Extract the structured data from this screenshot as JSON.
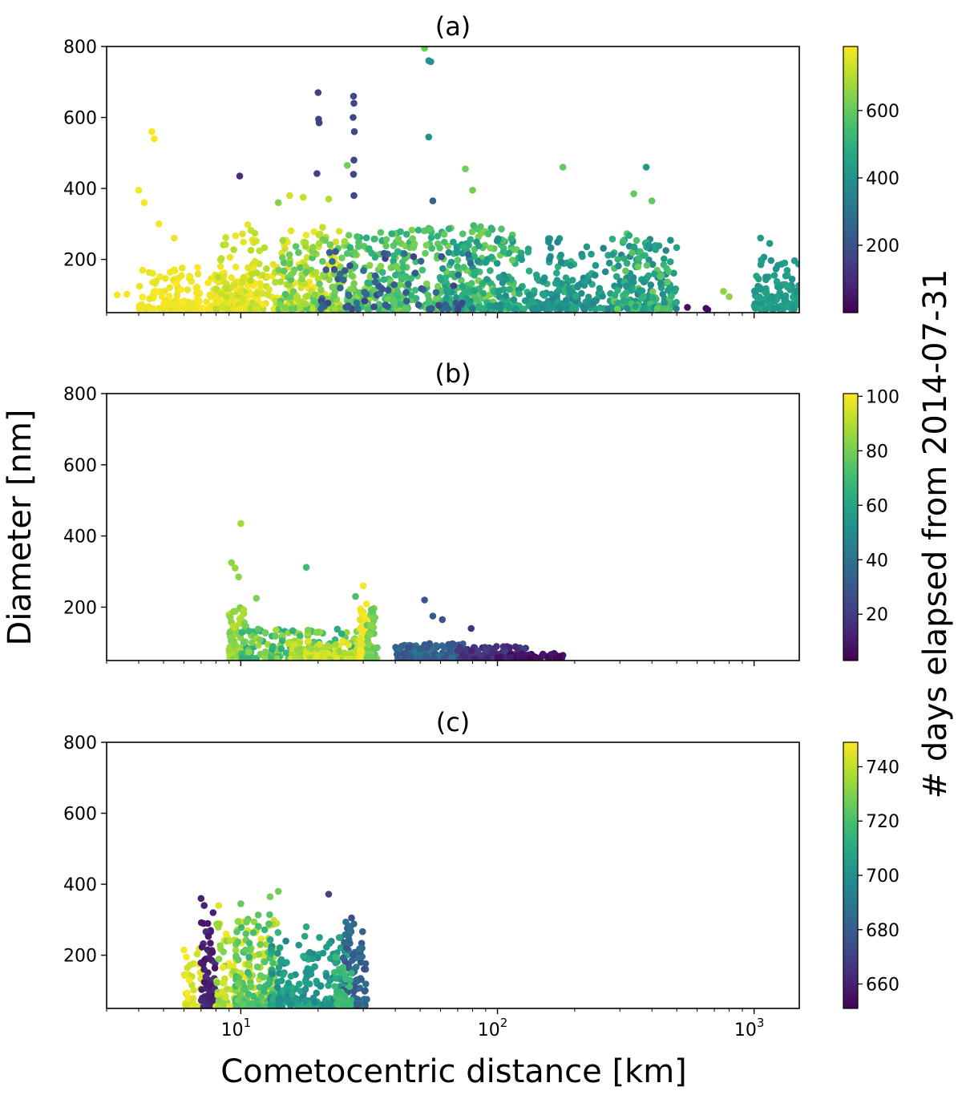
{
  "figure": {
    "ylabel": "Diameter [nm]",
    "xlabel": "Cometocentric distance [km]",
    "cbar_label": "# days elapsed from 2014-07-31"
  },
  "chart_data": [
    {
      "type": "scatter",
      "title": "(a)",
      "xscale": "log",
      "xlim": [
        3,
        1500
      ],
      "ylim": [
        50,
        800
      ],
      "yticks": [
        200,
        400,
        600,
        800
      ],
      "xticks": [
        {
          "value": 10,
          "base": "10",
          "exp": "1"
        },
        {
          "value": 100,
          "base": "10",
          "exp": "2"
        },
        {
          "value": 1000,
          "base": "10",
          "exp": "3"
        }
      ],
      "show_xticklabels": false,
      "colormap": "viridis",
      "clim": [
        0,
        790
      ],
      "cticks": [
        200,
        400,
        600
      ],
      "clusters": [
        {
          "x": [
            4,
            12
          ],
          "y": [
            60,
            180
          ],
          "c": [
            760,
            790
          ],
          "n": 220
        },
        {
          "x": [
            8,
            25
          ],
          "y": [
            60,
            300
          ],
          "c": [
            700,
            780
          ],
          "n": 220
        },
        {
          "x": [
            14,
            32
          ],
          "y": [
            60,
            260
          ],
          "c": [
            560,
            720
          ],
          "n": 160
        },
        {
          "x": [
            26,
            45
          ],
          "y": [
            60,
            280
          ],
          "c": [
            480,
            650
          ],
          "n": 160
        },
        {
          "x": [
            40,
            120
          ],
          "y": [
            60,
            300
          ],
          "c": [
            500,
            640
          ],
          "n": 260
        },
        {
          "x": [
            60,
            200
          ],
          "y": [
            60,
            260
          ],
          "c": [
            380,
            520
          ],
          "n": 200
        },
        {
          "x": [
            150,
            500
          ],
          "y": [
            60,
            260
          ],
          "c": [
            350,
            480
          ],
          "n": 220
        },
        {
          "x": [
            280,
            480
          ],
          "y": [
            60,
            280
          ],
          "c": [
            380,
            620
          ],
          "n": 120
        },
        {
          "x": [
            20,
            80
          ],
          "y": [
            60,
            230
          ],
          "c": [
            150,
            300
          ],
          "n": 70
        },
        {
          "x": [
            1000,
            1500
          ],
          "y": [
            60,
            220
          ],
          "c": [
            400,
            470
          ],
          "n": 120
        }
      ],
      "points": [
        {
          "x": 3.3,
          "y": 100,
          "c": 780
        },
        {
          "x": 3.6,
          "y": 102,
          "c": 780
        },
        {
          "x": 4.5,
          "y": 560,
          "c": 780
        },
        {
          "x": 4.6,
          "y": 540,
          "c": 780
        },
        {
          "x": 4.0,
          "y": 395,
          "c": 780
        },
        {
          "x": 4.2,
          "y": 360,
          "c": 780
        },
        {
          "x": 4.8,
          "y": 300,
          "c": 780
        },
        {
          "x": 5.5,
          "y": 260,
          "c": 770
        },
        {
          "x": 9.9,
          "y": 435,
          "c": 100
        },
        {
          "x": 20.0,
          "y": 670,
          "c": 150
        },
        {
          "x": 20.1,
          "y": 595,
          "c": 150
        },
        {
          "x": 20.2,
          "y": 585,
          "c": 150
        },
        {
          "x": 19.8,
          "y": 442,
          "c": 150
        },
        {
          "x": 27.5,
          "y": 660,
          "c": 170
        },
        {
          "x": 27.6,
          "y": 640,
          "c": 170
        },
        {
          "x": 27.4,
          "y": 600,
          "c": 170
        },
        {
          "x": 27.7,
          "y": 560,
          "c": 170
        },
        {
          "x": 27.6,
          "y": 480,
          "c": 170
        },
        {
          "x": 27.5,
          "y": 440,
          "c": 170
        },
        {
          "x": 27.6,
          "y": 380,
          "c": 170
        },
        {
          "x": 26.0,
          "y": 465,
          "c": 620
        },
        {
          "x": 52.0,
          "y": 795,
          "c": 610
        },
        {
          "x": 54.0,
          "y": 760,
          "c": 400
        },
        {
          "x": 55.0,
          "y": 757,
          "c": 400
        },
        {
          "x": 54.0,
          "y": 545,
          "c": 400
        },
        {
          "x": 56.0,
          "y": 365,
          "c": 250
        },
        {
          "x": 75.0,
          "y": 455,
          "c": 620
        },
        {
          "x": 80.0,
          "y": 395,
          "c": 620
        },
        {
          "x": 180.0,
          "y": 460,
          "c": 600
        },
        {
          "x": 380.0,
          "y": 460,
          "c": 420
        },
        {
          "x": 340.0,
          "y": 385,
          "c": 600
        },
        {
          "x": 400.0,
          "y": 365,
          "c": 600
        },
        {
          "x": 550.0,
          "y": 65,
          "c": 30
        },
        {
          "x": 650.0,
          "y": 62,
          "c": 20
        },
        {
          "x": 660.0,
          "y": 58,
          "c": 20
        },
        {
          "x": 760.0,
          "y": 110,
          "c": 650
        },
        {
          "x": 800.0,
          "y": 95,
          "c": 650
        },
        {
          "x": 1060.0,
          "y": 260,
          "c": 420
        },
        {
          "x": 1150.0,
          "y": 245,
          "c": 420
        },
        {
          "x": 15.5,
          "y": 380,
          "c": 740
        },
        {
          "x": 17.5,
          "y": 375,
          "c": 720
        },
        {
          "x": 14.0,
          "y": 360,
          "c": 640
        },
        {
          "x": 22.0,
          "y": 370,
          "c": 700
        }
      ]
    },
    {
      "type": "scatter",
      "title": "(b)",
      "xscale": "log",
      "xlim": [
        3,
        1500
      ],
      "ylim": [
        50,
        800
      ],
      "yticks": [
        200,
        400,
        600,
        800
      ],
      "xticks": [
        {
          "value": 10,
          "base": "10",
          "exp": "1"
        },
        {
          "value": 100,
          "base": "10",
          "exp": "2"
        },
        {
          "value": 1000,
          "base": "10",
          "exp": "3"
        }
      ],
      "show_xticklabels": false,
      "colormap": "viridis",
      "clim": [
        3,
        101
      ],
      "cticks": [
        20,
        40,
        60,
        80,
        100
      ],
      "clusters": [
        {
          "x": [
            9,
            10.5
          ],
          "y": [
            55,
            200
          ],
          "c": [
            80,
            92
          ],
          "n": 90
        },
        {
          "x": [
            10,
            30
          ],
          "y": [
            55,
            140
          ],
          "c": [
            62,
            88
          ],
          "n": 200
        },
        {
          "x": [
            15,
            33
          ],
          "y": [
            55,
            110
          ],
          "c": [
            85,
            98
          ],
          "n": 120
        },
        {
          "x": [
            29,
            31
          ],
          "y": [
            55,
            220
          ],
          "c": [
            96,
            101
          ],
          "n": 80
        },
        {
          "x": [
            31,
            34
          ],
          "y": [
            55,
            200
          ],
          "c": [
            76,
            84
          ],
          "n": 50
        },
        {
          "x": [
            40,
            75
          ],
          "y": [
            55,
            100
          ],
          "c": [
            25,
            42
          ],
          "n": 150
        },
        {
          "x": [
            70,
            130
          ],
          "y": [
            55,
            90
          ],
          "c": [
            10,
            22
          ],
          "n": 120
        },
        {
          "x": [
            100,
            180
          ],
          "y": [
            55,
            70
          ],
          "c": [
            3,
            10
          ],
          "n": 40
        }
      ],
      "points": [
        {
          "x": 10.0,
          "y": 435,
          "c": 88
        },
        {
          "x": 9.2,
          "y": 325,
          "c": 84
        },
        {
          "x": 9.5,
          "y": 310,
          "c": 86
        },
        {
          "x": 9.8,
          "y": 285,
          "c": 84
        },
        {
          "x": 18.0,
          "y": 312,
          "c": 70
        },
        {
          "x": 52.0,
          "y": 220,
          "c": 30
        },
        {
          "x": 56.0,
          "y": 175,
          "c": 30
        },
        {
          "x": 61.0,
          "y": 165,
          "c": 28
        },
        {
          "x": 79.0,
          "y": 140,
          "c": 18
        },
        {
          "x": 11.5,
          "y": 225,
          "c": 82
        },
        {
          "x": 30.0,
          "y": 260,
          "c": 100
        },
        {
          "x": 28.0,
          "y": 230,
          "c": 72
        },
        {
          "x": 175.0,
          "y": 62,
          "c": 4
        }
      ]
    },
    {
      "type": "scatter",
      "title": "(c)",
      "xscale": "log",
      "xlim": [
        3,
        1500
      ],
      "ylim": [
        50,
        800
      ],
      "yticks": [
        200,
        400,
        600,
        800
      ],
      "xticks": [
        {
          "value": 10,
          "base": "10",
          "exp": "1"
        },
        {
          "value": 100,
          "base": "10",
          "exp": "2"
        },
        {
          "value": 1000,
          "base": "10",
          "exp": "3"
        }
      ],
      "show_xticklabels": true,
      "colormap": "viridis",
      "clim": [
        651,
        749
      ],
      "cticks": [
        660,
        680,
        700,
        720,
        740
      ],
      "clusters": [
        {
          "x": [
            6,
            7
          ],
          "y": [
            55,
            220
          ],
          "c": [
            740,
            749
          ],
          "n": 40
        },
        {
          "x": [
            7,
            8
          ],
          "y": [
            55,
            300
          ],
          "c": [
            655,
            665
          ],
          "n": 70
        },
        {
          "x": [
            8,
            14
          ],
          "y": [
            55,
            300
          ],
          "c": [
            730,
            748
          ],
          "n": 200
        },
        {
          "x": [
            9.5,
            14
          ],
          "y": [
            55,
            320
          ],
          "c": [
            715,
            728
          ],
          "n": 100
        },
        {
          "x": [
            13,
            26
          ],
          "y": [
            55,
            260
          ],
          "c": [
            695,
            712
          ],
          "n": 180
        },
        {
          "x": [
            25,
            31
          ],
          "y": [
            55,
            300
          ],
          "c": [
            675,
            690
          ],
          "n": 100
        },
        {
          "x": [
            23,
            27
          ],
          "y": [
            55,
            200
          ],
          "c": [
            715,
            722
          ],
          "n": 40
        }
      ],
      "points": [
        {
          "x": 7.0,
          "y": 360,
          "c": 660
        },
        {
          "x": 7.2,
          "y": 340,
          "c": 660
        },
        {
          "x": 7.8,
          "y": 320,
          "c": 660
        },
        {
          "x": 8.2,
          "y": 340,
          "c": 745
        },
        {
          "x": 10.0,
          "y": 345,
          "c": 725
        },
        {
          "x": 14.0,
          "y": 380,
          "c": 728
        },
        {
          "x": 13.0,
          "y": 365,
          "c": 728
        },
        {
          "x": 22.0,
          "y": 372,
          "c": 670
        },
        {
          "x": 27.0,
          "y": 305,
          "c": 675
        },
        {
          "x": 6.0,
          "y": 215,
          "c": 748
        },
        {
          "x": 6.3,
          "y": 130,
          "c": 748
        },
        {
          "x": 18.0,
          "y": 280,
          "c": 712
        }
      ]
    }
  ]
}
